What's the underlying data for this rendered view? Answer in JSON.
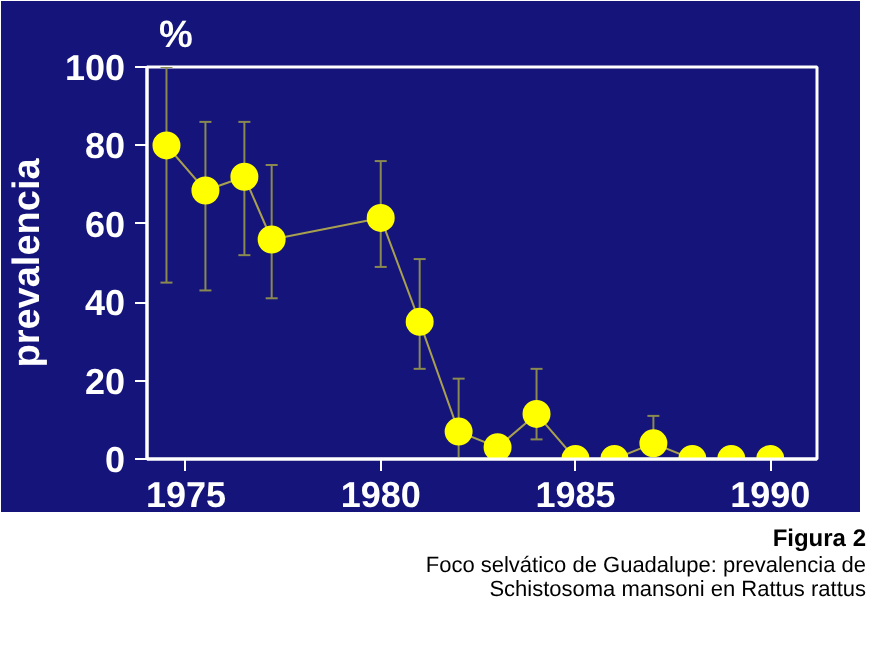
{
  "chart_data": {
    "type": "line",
    "title": "%",
    "ylabel": "prevalencia",
    "x": [
      1974.5,
      1975.5,
      1976.5,
      1977.2,
      1980,
      1981,
      1982,
      1983,
      1984,
      1985,
      1986,
      1987,
      1988,
      1989,
      1990
    ],
    "series": [
      {
        "color": "#ffff00",
        "values": [
          80,
          68.5,
          72,
          56,
          61.5,
          35,
          7,
          3,
          11.5,
          0,
          0,
          4,
          0,
          0,
          0
        ],
        "errors": [
          [
            45,
            100
          ],
          [
            43,
            86
          ],
          [
            52,
            86
          ],
          [
            41,
            75
          ],
          [
            49,
            76
          ],
          [
            23,
            51
          ],
          [
            0,
            20.5
          ],
          null,
          [
            5,
            23
          ],
          null,
          null,
          [
            0,
            11
          ],
          null,
          null,
          null
        ]
      }
    ],
    "xlim": [
      1974,
      1991.2
    ],
    "xticks": [
      1975,
      1980,
      1985,
      1990
    ],
    "ylim": [
      0,
      100
    ],
    "yticks": [
      0,
      20,
      40,
      60,
      80,
      100
    ],
    "grid": false,
    "marker": "circle",
    "line_style": "solid",
    "annotations": [
      "Figura 2",
      "Foco selvático de Guadalupe: prevalencia de Schistosoma mansoni en Rattus rattus"
    ]
  }
}
